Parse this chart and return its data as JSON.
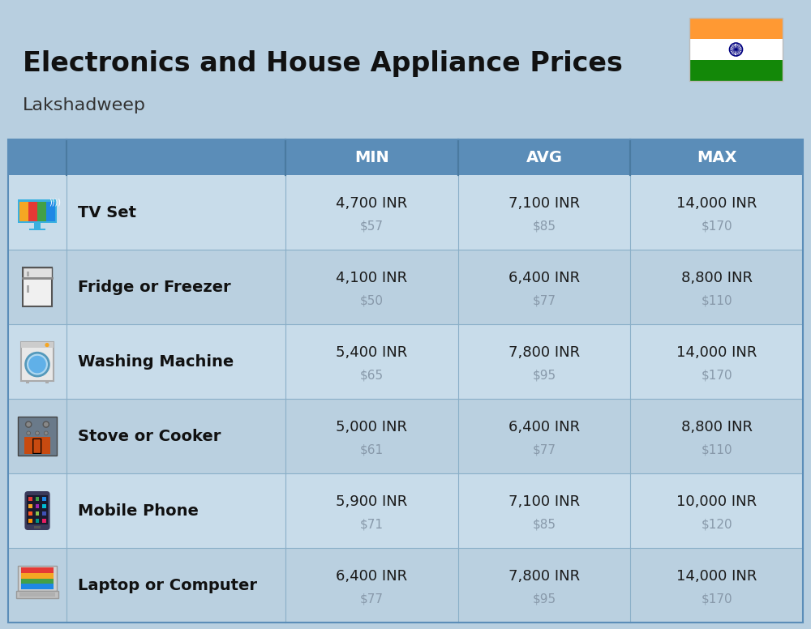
{
  "title_line1": "Electronics and House Appliance Prices",
  "subtitle": "Lakshadweep",
  "background_color": "#b8cfe0",
  "header_color": "#5b8db8",
  "header_text_color": "#ffffff",
  "col_headers": [
    "MIN",
    "AVG",
    "MAX"
  ],
  "rows": [
    {
      "name": "TV Set",
      "min_inr": "4,700 INR",
      "min_usd": "$57",
      "avg_inr": "7,100 INR",
      "avg_usd": "$85",
      "max_inr": "14,000 INR",
      "max_usd": "$170"
    },
    {
      "name": "Fridge or Freezer",
      "min_inr": "4,100 INR",
      "min_usd": "$50",
      "avg_inr": "6,400 INR",
      "avg_usd": "$77",
      "max_inr": "8,800 INR",
      "max_usd": "$110"
    },
    {
      "name": "Washing Machine",
      "min_inr": "5,400 INR",
      "min_usd": "$65",
      "avg_inr": "7,800 INR",
      "avg_usd": "$95",
      "max_inr": "14,000 INR",
      "max_usd": "$170"
    },
    {
      "name": "Stove or Cooker",
      "min_inr": "5,000 INR",
      "min_usd": "$61",
      "avg_inr": "6,400 INR",
      "avg_usd": "$77",
      "max_inr": "8,800 INR",
      "max_usd": "$110"
    },
    {
      "name": "Mobile Phone",
      "min_inr": "5,900 INR",
      "min_usd": "$71",
      "avg_inr": "7,100 INR",
      "avg_usd": "$85",
      "max_inr": "10,000 INR",
      "max_usd": "$120"
    },
    {
      "name": "Laptop or Computer",
      "min_inr": "6,400 INR",
      "min_usd": "$77",
      "avg_inr": "7,800 INR",
      "avg_usd": "$95",
      "max_inr": "14,000 INR",
      "max_usd": "$170"
    }
  ],
  "inr_color": "#1a1a1a",
  "usd_color": "#8899aa",
  "name_color": "#111111",
  "divider_color": "#8aafc8",
  "row_colors": [
    "#c8dcea",
    "#bad0e0"
  ]
}
